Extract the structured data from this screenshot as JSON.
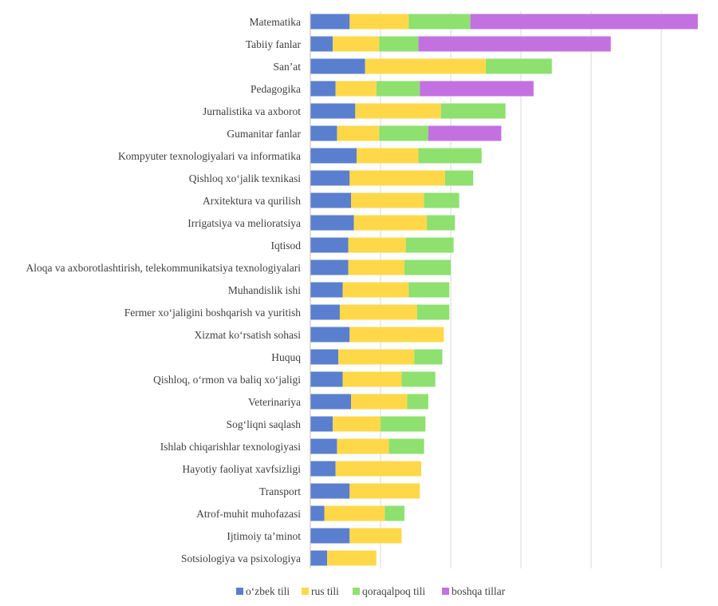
{
  "chart_data": {
    "type": "bar",
    "orientation": "horizontal",
    "stacked": true,
    "categories": [
      "Matematika",
      "Tabiiy fanlar",
      "San’at",
      "Pedagogika",
      "Jurnalistika va axborot",
      "Gumanitar fanlar",
      "Kompyuter texnologiyalari va informatika",
      "Qishloq xo‘jalik texnikasi",
      "Arxitektura va qurilish",
      "Irrigatsiya va melioratsiya",
      "Iqtisod",
      "Aloqa va axborotlashtirish, telekommunikatsiya texnologiyalari",
      "Muhandislik ishi",
      "Fermer xo‘jaligini boshqarish va yuritish",
      "Xizmat ko‘rsatish sohasi",
      "Huquq",
      "Qishloq, o‘rmon va baliq xo‘jaligi",
      "Veterinariya",
      "Sog‘liqni saqlash",
      "Ishlab chiqarishlar texnologiyasi",
      "Hayotiy faoliyat xavfsizligi",
      "Transport",
      "Atrof-muhit muhofazasi",
      "Ijtimoiy ta’minot",
      "Sotsiologiya va psixologiya"
    ],
    "series": [
      {
        "name": "o‘zbek tili",
        "color": "#5b7fcf",
        "values": [
          28,
          16,
          39,
          18,
          32,
          19,
          33,
          28,
          29,
          31,
          27,
          27,
          23,
          21,
          28,
          20,
          23,
          29,
          16,
          19,
          18,
          28,
          10,
          28,
          12
        ]
      },
      {
        "name": "rus tili",
        "color": "#ffd84a",
        "values": [
          42,
          33,
          86,
          29,
          61,
          30,
          44,
          68,
          52,
          52,
          41,
          40,
          47,
          55,
          67,
          54,
          42,
          40,
          34,
          37,
          61,
          50,
          43,
          37,
          35
        ]
      },
      {
        "name": "qoraqalpoq tili",
        "color": "#8ee06f",
        "values": [
          44,
          28,
          47,
          31,
          46,
          35,
          45,
          20,
          25,
          20,
          34,
          33,
          29,
          23,
          0,
          20,
          24,
          15,
          32,
          25,
          0,
          0,
          14,
          0,
          0
        ]
      },
      {
        "name": "boshqa tillar",
        "color": "#c371e0",
        "values": [
          162,
          137,
          0,
          81,
          0,
          52,
          0,
          0,
          0,
          0,
          0,
          0,
          0,
          0,
          0,
          0,
          0,
          0,
          0,
          0,
          0,
          0,
          0,
          0,
          0
        ]
      }
    ],
    "xlim": [
      0,
      300
    ],
    "x_gridlines": [
      50,
      100,
      150,
      200,
      250,
      300
    ],
    "grid": "vertical",
    "x_tick_labels_visible": false,
    "legend_position": "bottom"
  }
}
